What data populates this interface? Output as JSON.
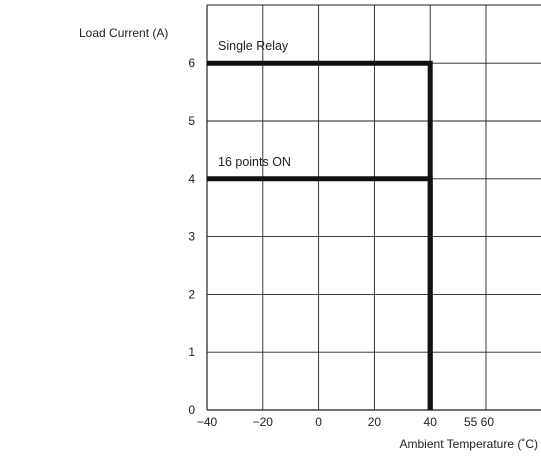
{
  "chart_data": {
    "type": "line",
    "ylabel": "Load Current (A)",
    "xlabel": "Ambient Temperature (˚C)",
    "x_ticks": [
      "−40",
      "−20",
      "0",
      "20",
      "40",
      "55 60"
    ],
    "x_grid": [
      -40,
      -20,
      0,
      20,
      40,
      60,
      80
    ],
    "y_ticks": [
      0,
      1,
      2,
      3,
      4,
      5,
      6
    ],
    "xlim": [
      -40,
      80
    ],
    "ylim": [
      0,
      7
    ],
    "grid": true,
    "series": [
      {
        "name": "Single Relay",
        "x": [
          -40,
          40,
          40
        ],
        "y": [
          6,
          6,
          0
        ]
      },
      {
        "name": "16 points ON",
        "x": [
          -40,
          40,
          40
        ],
        "y": [
          4,
          4,
          0
        ]
      }
    ]
  }
}
